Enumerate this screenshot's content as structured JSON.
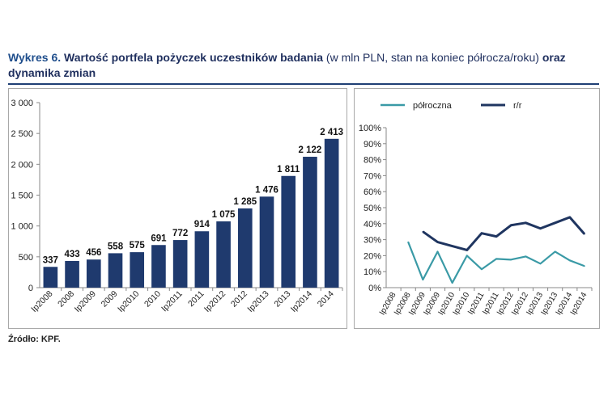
{
  "title": {
    "label": "Wykres 6.",
    "main": "Wartość portfela pożyczek uczestników badania",
    "unit": "(w mln PLN, stan na koniec półrocza/roku)",
    "tail": "oraz dynamika zmian"
  },
  "source": "Źródło: KPF.",
  "chart_data": [
    {
      "type": "bar",
      "title": "",
      "categories": [
        "Ip2008",
        "2008",
        "Ip2009",
        "2009",
        "Ip2010",
        "2010",
        "Ip2011",
        "2011",
        "Ip2012",
        "2012",
        "Ip2013",
        "2013",
        "Ip2014",
        "2014"
      ],
      "values": [
        337,
        433,
        456,
        558,
        575,
        691,
        772,
        914,
        1075,
        1285,
        1476,
        1811,
        2122,
        2413
      ],
      "value_labels": [
        "337",
        "433",
        "456",
        "558",
        "575",
        "691",
        "772",
        "914",
        "1 075",
        "1 285",
        "1 476",
        "1 811",
        "2 122",
        "2 413"
      ],
      "ylim": [
        0,
        3000
      ],
      "yticks": [
        0,
        500,
        1000,
        1500,
        2000,
        2500,
        3000
      ],
      "ytick_labels": [
        "0",
        "500",
        "1 000",
        "1 500",
        "2 000",
        "2 500",
        "3 000"
      ],
      "xlabel": "",
      "ylabel": "",
      "grid": false,
      "color": "#1f3a6e"
    },
    {
      "type": "line",
      "title": "",
      "categories": [
        "Ip2008",
        "Ip2008",
        "Ip2009",
        "Ip2009",
        "Ip2010",
        "Ip2010",
        "Ip2011",
        "Ip2011",
        "Ip2012",
        "Ip2012",
        "Ip2013",
        "Ip2013",
        "Ip2014",
        "Ip2014"
      ],
      "series": [
        {
          "name": "półroczna",
          "color": "#3a9aa6",
          "values": [
            null,
            28.5,
            5,
            22.5,
            3,
            20,
            11.5,
            18,
            17.5,
            19.5,
            15,
            22.5,
            17,
            13.5
          ]
        },
        {
          "name": "r/r",
          "color": "#1f3560",
          "values": [
            null,
            null,
            35,
            28.5,
            26,
            23.5,
            34,
            32,
            39,
            40.5,
            37,
            40.5,
            44,
            33.5
          ]
        }
      ],
      "ylim": [
        0,
        100
      ],
      "yticks": [
        0,
        10,
        20,
        30,
        40,
        50,
        60,
        70,
        80,
        90,
        100
      ],
      "ytick_labels": [
        "0%",
        "10%",
        "20%",
        "30%",
        "40%",
        "50%",
        "60%",
        "70%",
        "80%",
        "90%",
        "100%"
      ],
      "legend_position": "top",
      "xlabel": "",
      "ylabel": "",
      "grid": false
    }
  ]
}
